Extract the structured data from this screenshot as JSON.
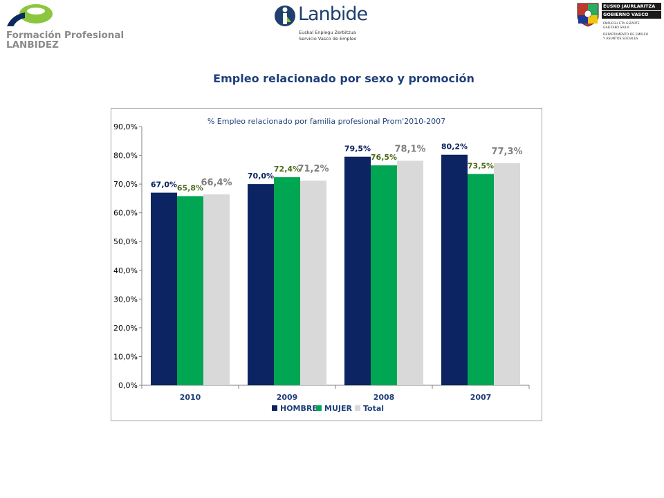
{
  "header": {
    "logo_fp": {
      "line1": "Formación Profesional",
      "line2": "LANBIDEZ"
    },
    "logo_lanbide": {
      "name": "Lanbide",
      "sub1": "Euskal Enplegu Zerbitzua",
      "sub2": "Servicio Vasco de Empleo"
    },
    "logo_gv": {
      "line1": "EUSKO JAURLARITZA",
      "line2": "GOBIERNO VASCO",
      "dept1": "ENPLEGU ETA GIZARTE",
      "dept2": "GAIETAKO SAILA",
      "dept3": "DEPARTAMENTO DE EMPLEO",
      "dept4": "Y ASUNTOS SOCIALES"
    }
  },
  "page_title": "Empleo relacionado por sexo y promoción",
  "colors": {
    "hombre": "#0c2461",
    "mujer": "#00a651",
    "total": "#d9d9d9",
    "title": "#1f3f7a"
  },
  "chart_data": {
    "type": "bar",
    "title": "% Empleo relacionado por familia profesional Prom'2010-2007",
    "categories": [
      "2010",
      "2009",
      "2008",
      "2007"
    ],
    "series": [
      {
        "name": "HOMBRE",
        "values": [
          67.0,
          70.0,
          79.5,
          80.2
        ],
        "labels": [
          "67,0%",
          "70,0%",
          "79,5%",
          "80,2%"
        ]
      },
      {
        "name": "MUJER",
        "values": [
          65.8,
          72.4,
          76.5,
          73.5
        ],
        "labels": [
          "65,8%",
          "72,4%",
          "76,5%",
          "73,5%"
        ]
      },
      {
        "name": "Total",
        "values": [
          66.4,
          71.2,
          78.1,
          77.3
        ],
        "labels": [
          "66,4%",
          "71,2%",
          "78,1%",
          "77,3%"
        ]
      }
    ],
    "ylim": [
      0,
      90
    ],
    "yticks": [
      "0,0%",
      "10,0%",
      "20,0%",
      "30,0%",
      "40,0%",
      "50,0%",
      "60,0%",
      "70,0%",
      "80,0%",
      "90,0%"
    ],
    "grid": false,
    "legend": "bottom"
  }
}
